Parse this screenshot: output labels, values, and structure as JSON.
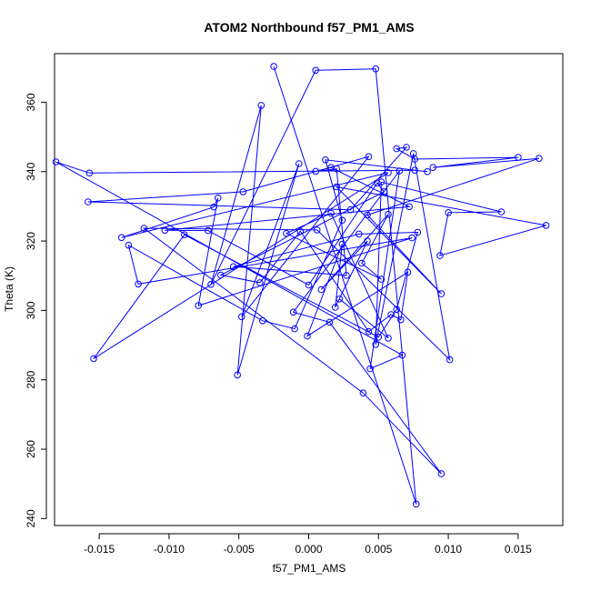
{
  "chart_data": {
    "type": "line",
    "title": "ATOM2 Northbound f57_PM1_AMS",
    "xlabel": "f57_PM1_AMS",
    "ylabel": "Theta (K)",
    "xlim": [
      -0.0182,
      0.0182
    ],
    "ylim": [
      238,
      374
    ],
    "xticks": [
      -0.015,
      -0.01,
      -0.005,
      0.0,
      0.005,
      0.01,
      0.015
    ],
    "xtick_labels": [
      "-0.015",
      "-0.010",
      "-0.005",
      "0.000",
      "0.005",
      "0.010",
      "0.015"
    ],
    "yticks": [
      240,
      260,
      280,
      300,
      320,
      340,
      360
    ],
    "ytick_labels": [
      "240",
      "260",
      "280",
      "300",
      "320",
      "340",
      "360"
    ],
    "color": "#0000ff",
    "marker": "open-circle",
    "series": [
      {
        "name": "f57_PM1_AMS",
        "points": [
          [
            -0.0025,
            370.3
          ],
          [
            0.0077,
            244.2
          ],
          [
            0.0048,
            369.6
          ],
          [
            0.0005,
            369.2
          ],
          [
            -0.007,
            307.5
          ],
          [
            -0.0034,
            359.1
          ],
          [
            -0.0051,
            281.4
          ],
          [
            -0.0007,
            342.3
          ],
          [
            -0.0048,
            298.2
          ],
          [
            0.0043,
            344.3
          ],
          [
            -0.0047,
            334.2
          ],
          [
            -0.0158,
            331.3
          ],
          [
            0.003,
            329.0
          ],
          [
            0.007,
            347.0
          ],
          [
            0.0063,
            346.6
          ],
          [
            0.0076,
            343.6
          ],
          [
            0.015,
            344.1
          ],
          [
            0.0089,
            341.2
          ],
          [
            0.0165,
            343.8
          ],
          [
            0.0042,
            327.5
          ],
          [
            0.0095,
            304.8
          ],
          [
            0.002,
            335.6
          ],
          [
            0.017,
            324.5
          ],
          [
            0.0094,
            315.8
          ],
          [
            0.01,
            328.2
          ],
          [
            0.0138,
            328.4
          ],
          [
            0.0052,
            337.0
          ],
          [
            0.0048,
            290.2
          ],
          [
            0.0075,
            345.2
          ],
          [
            0.0101,
            285.8
          ],
          [
            0.0006,
            323.2
          ],
          [
            -0.0118,
            323.7
          ],
          [
            0.0039,
            276.2
          ],
          [
            0.0095,
            252.9
          ],
          [
            0.0015,
            296.6
          ],
          [
            -0.0011,
            299.5
          ],
          [
            0.0065,
            340.2
          ],
          [
            0.0044,
            283.2
          ],
          [
            0.0067,
            287.1
          ],
          [
            -0.0181,
            342.8
          ],
          [
            -0.0157,
            339.6
          ],
          [
            0.0076,
            340.4
          ],
          [
            0.0085,
            340.0
          ],
          [
            0.0012,
            343.4
          ],
          [
            0.0024,
            326.0
          ],
          [
            -0.001,
            294.7
          ],
          [
            -0.0033,
            297.0
          ],
          [
            -0.0129,
            318.8
          ],
          [
            -0.0122,
            307.6
          ],
          [
            0.0074,
            320.9
          ],
          [
            -0.0079,
            301.4
          ],
          [
            -0.0065,
            332.4
          ],
          [
            -0.0068,
            329.8
          ],
          [
            -0.0134,
            321.0
          ],
          [
            0.0057,
            339.7
          ],
          [
            -0.0154,
            286.1
          ],
          [
            -0.0089,
            321.8
          ],
          [
            0.005,
            292.3
          ],
          [
            0.0063,
            300.3
          ],
          [
            0.0078,
            322.5
          ],
          [
            0.0036,
            322.0
          ],
          [
            -0.0054,
            312.6
          ],
          [
            0.0027,
            310.1
          ],
          [
            0.002,
            340.8
          ],
          [
            0.0005,
            340.1
          ],
          [
            0.0016,
            341.2
          ],
          [
            0.0072,
            329.9
          ],
          [
            -0.0103,
            323.1
          ],
          [
            -0.0072,
            323.0
          ],
          [
            0.0,
            307.3
          ],
          [
            0.0049,
            336.7
          ],
          [
            0.0054,
            334.2
          ],
          [
            -0.0063,
            310.2
          ],
          [
            -0.0035,
            308.0
          ],
          [
            -0.0006,
            322.8
          ],
          [
            0.0043,
            293.9
          ],
          [
            0.0059,
            298.8
          ],
          [
            0.0066,
            297.3
          ],
          [
            0.0071,
            311.0
          ],
          [
            -0.0001,
            292.6
          ],
          [
            0.0024,
            319.1
          ],
          [
            0.0019,
            300.9
          ],
          [
            0.0042,
            320.0
          ],
          [
            0.0009,
            306.0
          ],
          [
            0.0057,
            327.7
          ],
          [
            0.0038,
            313.6
          ],
          [
            0.0052,
            309.0
          ],
          [
            -0.0016,
            322.2
          ],
          [
            0.0016,
            328.0
          ],
          [
            0.0057,
            292.0
          ],
          [
            0.0022,
            303.3
          ]
        ]
      }
    ]
  }
}
